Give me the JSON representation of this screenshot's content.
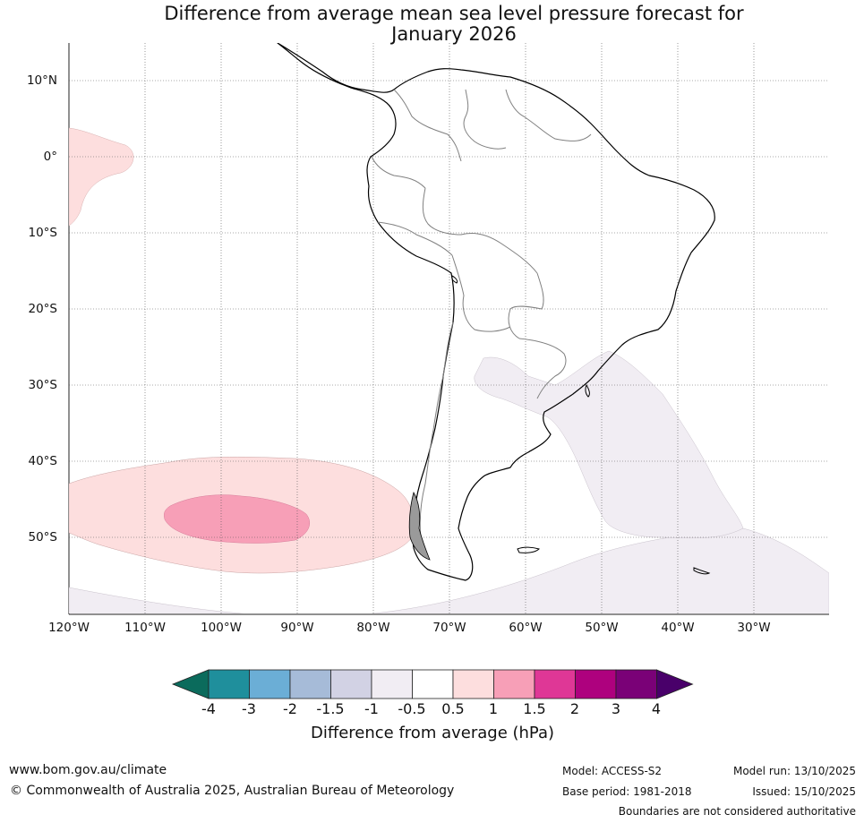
{
  "title": {
    "line1": "Difference from average mean sea level pressure forecast for",
    "line2": "January 2026"
  },
  "map": {
    "latitude_labels": [
      "10°N",
      "0°",
      "10°S",
      "20°S",
      "30°S",
      "40°S",
      "50°S"
    ],
    "longitude_labels": [
      "120°W",
      "110°W",
      "100°W",
      "90°W",
      "80°W",
      "70°W",
      "60°W",
      "50°W",
      "40°W",
      "30°W"
    ],
    "anomaly_regions": [
      {
        "name": "equatorial-pacific-positive",
        "category": "0.5 to 1"
      },
      {
        "name": "south-pacific-positive-outer",
        "category": "0.5 to 1"
      },
      {
        "name": "south-pacific-positive-core",
        "category": "1 to 1.5"
      },
      {
        "name": "south-atlantic-negative",
        "category": "-1 to -0.5"
      },
      {
        "name": "southern-ocean-negative",
        "category": "-1 to -0.5"
      }
    ]
  },
  "colorbar": {
    "title": "Difference from average (hPa)",
    "ticks": [
      "-4",
      "-3",
      "-2",
      "-1.5",
      "-1",
      "-0.5",
      "0.5",
      "1",
      "1.5",
      "2",
      "3",
      "4"
    ],
    "colors": [
      "#0b6b5c",
      "#1f8f9c",
      "#6baed6",
      "#a6bbd8",
      "#d2d2e4",
      "#f1edf3",
      "#ffffff",
      "#fddede",
      "#f79fb7",
      "#df3796",
      "#ae017e",
      "#7a0177",
      "#49006a"
    ]
  },
  "footer": {
    "website": "www.bom.gov.au/climate",
    "copyright": "© Commonwealth of Australia 2025, Australian Bureau of Meteorology",
    "model": "Model: ACCESS-S2",
    "base_period": "Base period: 1981-2018",
    "model_run": "Model run: 13/10/2025",
    "issued": "Issued: 15/10/2025",
    "disclaimer": "Boundaries are not considered authoritative"
  }
}
